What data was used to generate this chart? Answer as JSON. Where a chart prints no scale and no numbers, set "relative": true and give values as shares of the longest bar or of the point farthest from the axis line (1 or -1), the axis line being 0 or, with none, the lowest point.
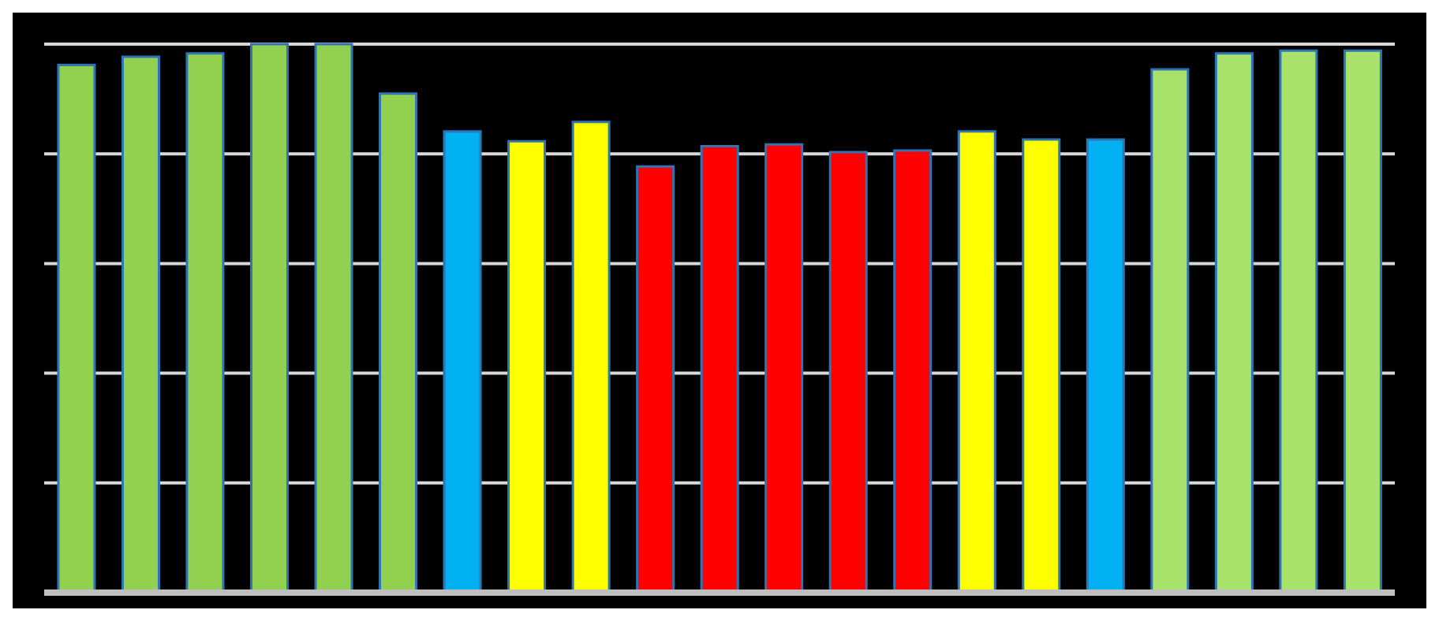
{
  "chart_data": {
    "type": "bar",
    "relative": true,
    "grid": "y",
    "categories": [
      null,
      null,
      null,
      null,
      null,
      null,
      null,
      null,
      null,
      null,
      null,
      null,
      null,
      null,
      null,
      null,
      null,
      null,
      null,
      null,
      null
    ],
    "values": [
      0.962,
      0.977,
      0.983,
      1,
      1,
      0.91,
      0.841,
      0.823,
      0.858,
      0.777,
      0.814,
      0.817,
      0.803,
      0.806,
      0.841,
      0.826,
      0.826,
      0.954,
      0.983,
      0.988,
      0.988
    ],
    "colors": [
      "#92d050",
      "#92d050",
      "#92d050",
      "#92d050",
      "#92d050",
      "#92d050",
      "#00b0f0",
      "#ffff00",
      "#ffff00",
      "#ff0000",
      "#ff0000",
      "#ff0000",
      "#ff0000",
      "#ff0000",
      "#ffff00",
      "#ffff00",
      "#00b0f0",
      "#a9e26a",
      "#a9e26a",
      "#a9e26a",
      "#a9e26a"
    ]
  }
}
